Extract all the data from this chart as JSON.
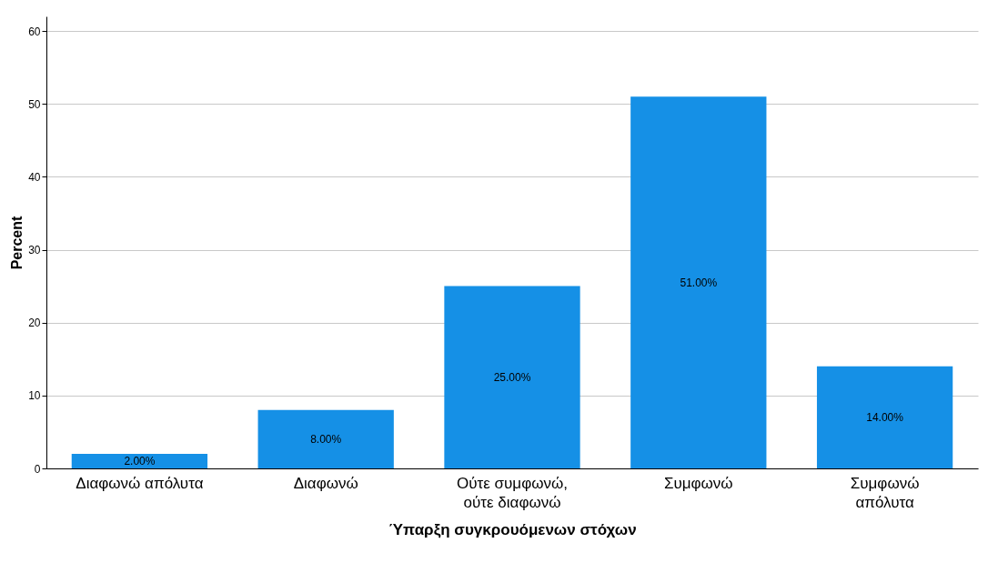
{
  "chart_data": {
    "type": "bar",
    "xlabel": "Ύπαρξη συγκρουόμενων στόχων",
    "ylabel": "Percent",
    "categories": [
      "Διαφωνώ απόλυτα",
      "Διαφωνώ",
      "Ούτε συμφωνώ,\nούτε διαφωνώ",
      "Συμφωνώ",
      "Συμφωνώ\nαπόλυτα"
    ],
    "values": [
      2,
      8,
      25,
      51,
      14
    ],
    "value_labels": [
      "2.00%",
      "8.00%",
      "25.00%",
      "51.00%",
      "14.00%"
    ],
    "color": "#1590e6",
    "ylim": [
      0,
      62
    ],
    "yticks": [
      0,
      10,
      20,
      30,
      40,
      50,
      60
    ],
    "grid": "y"
  }
}
